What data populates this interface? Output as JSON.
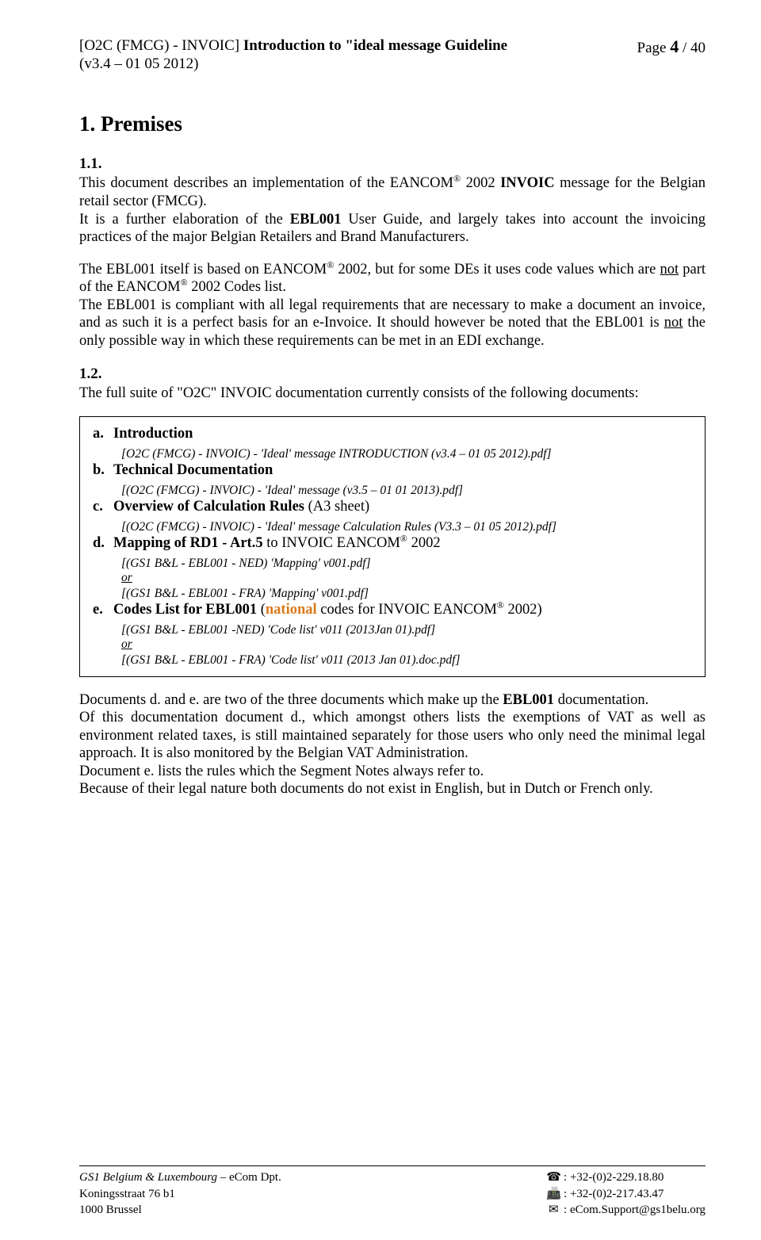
{
  "header": {
    "title_prefix": "[O2C (FMCG) - INVOIC]  ",
    "title_main": "Introduction to \"ideal message Guideline",
    "version_line": "(v3.4 – 01 05 2012)",
    "page_label": "Page ",
    "page_current": "4",
    "page_sep": " / ",
    "page_total": "40"
  },
  "section": {
    "h1": "1. Premises",
    "s11": "1.1.",
    "p1a": "This document describes an implementation of the EANCOM",
    "sup_r": "®",
    "p1b": " 2002 ",
    "invoic": "INVOIC",
    "p1c": " message for the Belgian retail sector (FMCG).",
    "p2a": "It is a further elaboration of the ",
    "ebl": "EBL001",
    "p2b": " User Guide, and largely takes into account the invoicing practices of the major Belgian Retailers and Brand Manufacturers.",
    "p3a": "The EBL001 itself is based on EANCOM",
    "p3b": " 2002, but for some DEs it uses code values which are ",
    "u_not": "not",
    "p3c": " part of the EANCOM",
    "p3d": " 2002 Codes list.",
    "p4a": "The EBL001 is compliant with all legal requirements that are necessary to make a document an invoice, and as such it is a perfect basis for an e-Invoice. It should however be noted that the EBL001 is ",
    "p4b": " the only possible way in which these requirements can be met in an EDI exchange.",
    "s12": "1.2.",
    "p5": "The full suite of \"O2C\" INVOIC documentation currently consists of the following documents:"
  },
  "docs": {
    "a": {
      "letter": "a.",
      "title": "Introduction",
      "file": "[O2C (FMCG) - INVOIC) - 'Ideal' message INTRODUCTION (v3.4 – 01 05 2012).pdf]"
    },
    "b": {
      "letter": "b.",
      "title": "Technical Documentation",
      "file": "[(O2C (FMCG) - INVOIC) - 'Ideal' message (v3.5 – 01 01 2013).pdf]"
    },
    "c": {
      "letter": "c.",
      "title_bold": "Overview of Calculation Rules",
      "title_rest": " (A3 sheet)",
      "file": "[(O2C (FMCG) - INVOIC) - 'Ideal' message Calculation Rules (V3.3 – 01 05 2012).pdf]"
    },
    "d": {
      "letter": "d.",
      "title_pre": "Mapping of RD1 - Art.5",
      "title_mid": " to INVOIC EANCOM",
      "title_post": " 2002",
      "file1": "[(GS1 B&L - EBL001 - NED)  'Mapping' v001.pdf]",
      "or": "or",
      "file2": "[(GS1 B&L - EBL001 - FRA)  'Mapping' v001.pdf]"
    },
    "e": {
      "letter": "e.",
      "title_bold": "Codes List for EBL001",
      "paren_open": " (",
      "national": "national",
      "title_rest1": " codes for INVOIC EANCOM",
      "title_rest2": " 2002)",
      "file1": "[(GS1 B&L - EBL001 -NED)  'Code list' v011 (2013Jan 01).pdf]",
      "or": "or",
      "file2": "[(GS1 B&L - EBL001 - FRA)  'Code list' v011 (2013 Jan 01).doc.pdf]"
    }
  },
  "after": {
    "p6a": "Documents d. and e. are two of the three documents which make up the ",
    "p6b": " documentation.",
    "p7": "Of this documentation document d., which amongst others lists the exemptions of VAT as well as environment related taxes, is still maintained separately for those users who only need the minimal legal approach. It is also monitored by the Belgian VAT Administration.",
    "p8": "Document e. lists the rules which the Segment Notes always refer to.",
    "p9": "Because of their legal nature both documents do not exist in English, but in Dutch or French only."
  },
  "footer": {
    "org": "GS1 Belgium & Luxembourg",
    "org_suffix": " – eCom Dpt.",
    "addr1": "Koningsstraat 76 b1",
    "addr2": "1000 Brussel",
    "tel_icon": "☎",
    "fax_icon": "📠",
    "mail_icon": "✉",
    "tel": " : +32-(0)2-229.18.80",
    "fax": " : +32-(0)2-217.43.47",
    "mail": " :  eCom.Support@gs1belu.org"
  }
}
